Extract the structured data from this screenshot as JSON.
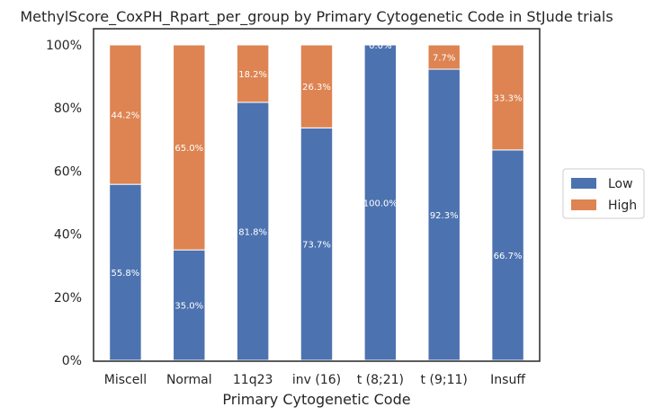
{
  "chart_data": {
    "type": "bar",
    "stacked": true,
    "title": "MethylScore_CoxPH_Rpart_per_group by Primary Cytogenetic Code in StJude trials",
    "xlabel": "Primary Cytogenetic Code",
    "ylabel": "",
    "ylim": [
      0,
      100
    ],
    "yticks": [
      "0%",
      "20%",
      "40%",
      "60%",
      "80%",
      "100%"
    ],
    "categories": [
      "Miscell",
      "Normal",
      "11q23",
      "inv (16)",
      "t (8;21)",
      "t (9;11)",
      "Insuff"
    ],
    "series": [
      {
        "name": "Low",
        "color": "#4c72b0",
        "values": [
          55.8,
          35.0,
          81.8,
          73.7,
          100.0,
          92.3,
          66.7
        ],
        "labels": [
          "55.8%",
          "35.0%",
          "81.8%",
          "73.7%",
          "100.0%",
          "92.3%",
          "66.7%"
        ]
      },
      {
        "name": "High",
        "color": "#dd8452",
        "values": [
          44.2,
          65.0,
          18.2,
          26.3,
          0.0,
          7.7,
          33.3
        ],
        "labels": [
          "44.2%",
          "65.0%",
          "18.2%",
          "26.3%",
          "0.0%",
          "7.7%",
          "33.3%"
        ]
      }
    ],
    "legend": {
      "placement": "right",
      "entries": [
        "Low",
        "High"
      ]
    },
    "grid": false
  }
}
